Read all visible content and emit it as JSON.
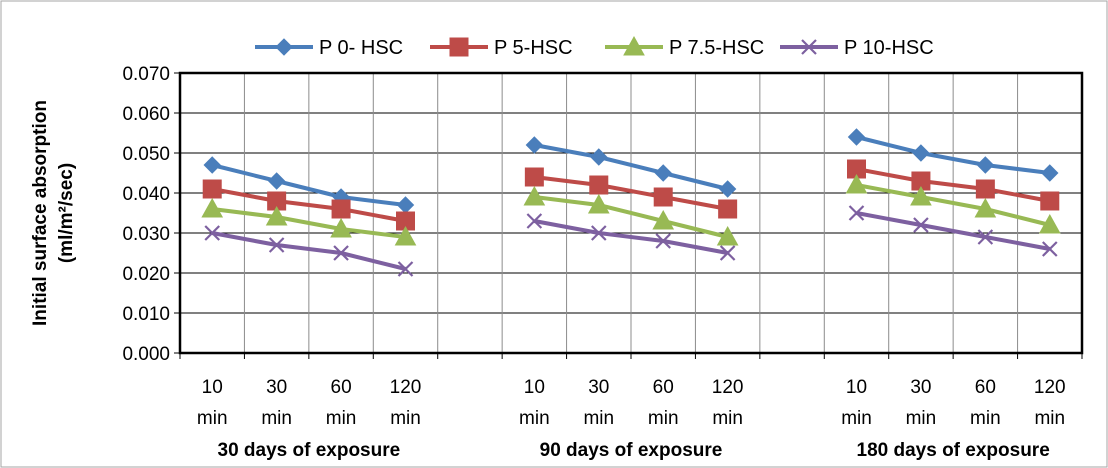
{
  "chart_data": {
    "type": "line",
    "ylabel_line1": "Initial surface absorption",
    "ylabel_line2": "(ml/m²/sec)",
    "ylim": [
      0,
      0.07
    ],
    "yticks": [
      "0.000",
      "0.010",
      "0.020",
      "0.030",
      "0.040",
      "0.050",
      "0.060",
      "0.070"
    ],
    "grid": true,
    "legend_position": "top",
    "groups": [
      {
        "label": "30 days of exposure",
        "categories": [
          [
            "10",
            "min"
          ],
          [
            "30",
            "min"
          ],
          [
            "60",
            "min"
          ],
          [
            "120",
            "min"
          ]
        ]
      },
      {
        "label": "90 days of exposure",
        "categories": [
          [
            "10",
            "min"
          ],
          [
            "30",
            "min"
          ],
          [
            "60",
            "min"
          ],
          [
            "120",
            "min"
          ]
        ]
      },
      {
        "label": "180 days of exposure",
        "categories": [
          [
            "10",
            "min"
          ],
          [
            "30",
            "min"
          ],
          [
            "60",
            "min"
          ],
          [
            "120",
            "min"
          ]
        ]
      }
    ],
    "series": [
      {
        "name": "P 0- HSC",
        "color": "#4A7EBB",
        "marker": "diamond",
        "values": [
          [
            0.047,
            0.043,
            0.039,
            0.037
          ],
          [
            0.052,
            0.049,
            0.045,
            0.041
          ],
          [
            0.054,
            0.05,
            0.047,
            0.045
          ]
        ]
      },
      {
        "name": "P 5-HSC",
        "color": "#BE4B48",
        "marker": "square",
        "values": [
          [
            0.041,
            0.038,
            0.036,
            0.033
          ],
          [
            0.044,
            0.042,
            0.039,
            0.036
          ],
          [
            0.046,
            0.043,
            0.041,
            0.038
          ]
        ]
      },
      {
        "name": "P 7.5-HSC",
        "color": "#98B954",
        "marker": "triangle",
        "values": [
          [
            0.036,
            0.034,
            0.031,
            0.029
          ],
          [
            0.039,
            0.037,
            0.033,
            0.029
          ],
          [
            0.042,
            0.039,
            0.036,
            0.032
          ]
        ]
      },
      {
        "name": "P 10-HSC",
        "color": "#7D60A0",
        "marker": "x",
        "values": [
          [
            0.03,
            0.027,
            0.025,
            0.021
          ],
          [
            0.033,
            0.03,
            0.028,
            0.025
          ],
          [
            0.035,
            0.032,
            0.029,
            0.026
          ]
        ]
      }
    ]
  }
}
